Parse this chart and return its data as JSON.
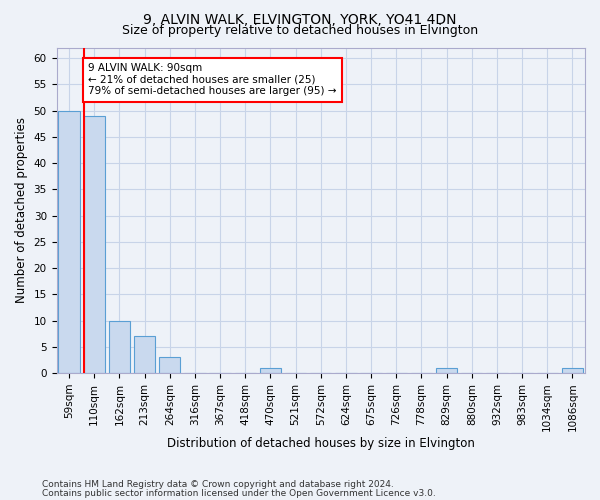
{
  "title1": "9, ALVIN WALK, ELVINGTON, YORK, YO41 4DN",
  "title2": "Size of property relative to detached houses in Elvington",
  "xlabel": "Distribution of detached houses by size in Elvington",
  "ylabel": "Number of detached properties",
  "bin_labels": [
    "59sqm",
    "110sqm",
    "162sqm",
    "213sqm",
    "264sqm",
    "316sqm",
    "367sqm",
    "418sqm",
    "470sqm",
    "521sqm",
    "572sqm",
    "624sqm",
    "675sqm",
    "726sqm",
    "778sqm",
    "829sqm",
    "880sqm",
    "932sqm",
    "983sqm",
    "1034sqm",
    "1086sqm"
  ],
  "bar_heights": [
    50,
    49,
    10,
    7,
    3,
    0,
    0,
    0,
    1,
    0,
    0,
    0,
    0,
    0,
    0,
    1,
    0,
    0,
    0,
    0,
    1
  ],
  "bar_color": "#c9d9ee",
  "bar_edge_color": "#5a9fd4",
  "ylim": [
    0,
    62
  ],
  "yticks": [
    0,
    5,
    10,
    15,
    20,
    25,
    30,
    35,
    40,
    45,
    50,
    55,
    60
  ],
  "property_size_sqm": 90,
  "annotation_text": "9 ALVIN WALK: 90sqm\n← 21% of detached houses are smaller (25)\n79% of semi-detached houses are larger (95) →",
  "annotation_box_color": "white",
  "annotation_box_edge_color": "red",
  "red_line_color": "red",
  "footer1": "Contains HM Land Registry data © Crown copyright and database right 2024.",
  "footer2": "Contains public sector information licensed under the Open Government Licence v3.0.",
  "background_color": "#eef2f8",
  "grid_color": "#c8d4e8",
  "title1_fontsize": 10,
  "title2_fontsize": 9,
  "xlabel_fontsize": 8.5,
  "ylabel_fontsize": 8.5,
  "tick_fontsize": 7.5,
  "footer_fontsize": 6.5,
  "annotation_fontsize": 7.5
}
